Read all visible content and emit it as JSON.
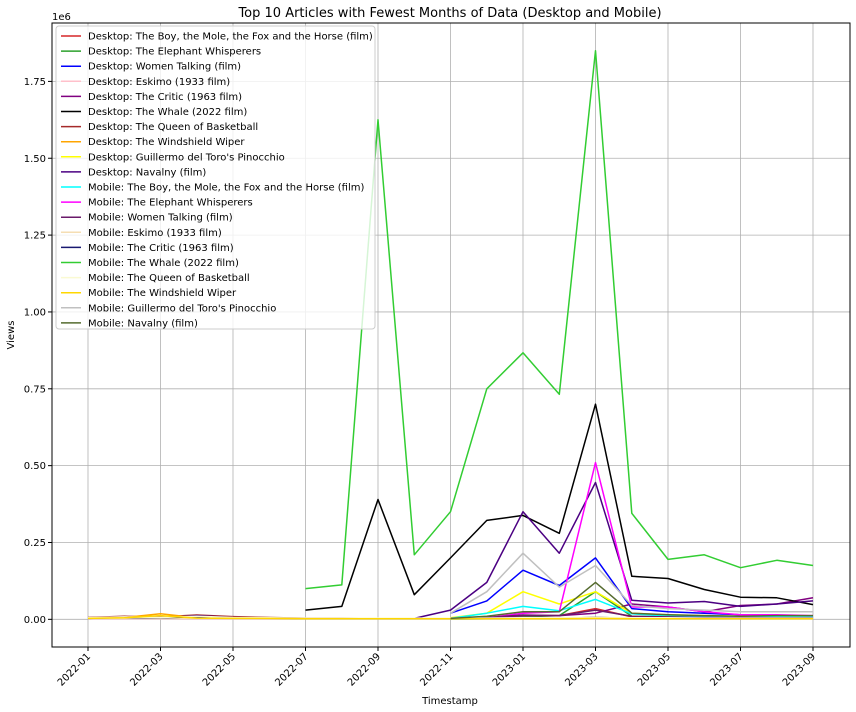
{
  "chart_data": {
    "type": "line",
    "title": "Top 10 Articles with Fewest Months of Data (Desktop and Mobile)",
    "xlabel": "Timestamp",
    "ylabel": "Views",
    "y_scale_label": "1e6",
    "ylim": [
      -0.09,
      1.94
    ],
    "y_ticks": [
      0,
      0.25,
      0.5,
      0.75,
      1.0,
      1.25,
      1.5,
      1.75
    ],
    "y_tick_labels": [
      "0.00",
      "0.25",
      "0.50",
      "0.75",
      "1.00",
      "1.25",
      "1.50",
      "1.75"
    ],
    "x": [
      "2022-01",
      "2022-02",
      "2022-03",
      "2022-04",
      "2022-05",
      "2022-06",
      "2022-07",
      "2022-08",
      "2022-09",
      "2022-10",
      "2022-11",
      "2022-12",
      "2023-01",
      "2023-02",
      "2023-03",
      "2023-04",
      "2023-05",
      "2023-06",
      "2023-07",
      "2023-08",
      "2023-09"
    ],
    "x_tick_labels": [
      "2022-01",
      "2022-03",
      "2022-05",
      "2022-07",
      "2022-09",
      "2022-11",
      "2023-01",
      "2023-03",
      "2023-05",
      "2023-07",
      "2023-09"
    ],
    "grid": true,
    "legend_position": "top-left",
    "series": [
      {
        "name": "Desktop: The Boy, the Mole, the Fox and the Horse (film)",
        "color": "#d62728",
        "values": [
          null,
          null,
          null,
          null,
          null,
          null,
          null,
          null,
          null,
          null,
          0.002,
          0.003,
          0.012,
          0.012,
          0.035,
          0.008,
          0.006,
          0.005,
          0.004,
          0.004,
          0.004
        ]
      },
      {
        "name": "Desktop: The Elephant Whisperers",
        "color": "#2ca02c",
        "values": [
          null,
          null,
          null,
          null,
          null,
          null,
          null,
          null,
          null,
          null,
          0.001,
          0.002,
          0.008,
          0.012,
          0.09,
          0.01,
          0.006,
          0.005,
          0.004,
          0.004,
          0.004
        ]
      },
      {
        "name": "Desktop: Women Talking (film)",
        "color": "#0000ff",
        "values": [
          null,
          null,
          null,
          null,
          null,
          null,
          null,
          null,
          null,
          null,
          0.02,
          0.06,
          0.16,
          0.11,
          0.2,
          0.035,
          0.025,
          0.02,
          0.015,
          0.012,
          0.01
        ]
      },
      {
        "name": "Desktop: Eskimo (1933 film)",
        "color": "#ffc0cb",
        "values": [
          0.002,
          0.002,
          0.002,
          0.002,
          0.002,
          0.002,
          0.002,
          0.002,
          0.002,
          0.002,
          0.002,
          0.002,
          0.002,
          0.002,
          0.002,
          0.002,
          0.002,
          0.002,
          0.002,
          0.002,
          0.002
        ]
      },
      {
        "name": "Desktop: The Critic (1963 film)",
        "color": "#800080",
        "values": [
          0.005,
          0.008,
          0.006,
          0.012,
          0.006,
          0.004,
          0.003,
          0.003,
          0.003,
          0.003,
          0.003,
          0.004,
          0.012,
          0.012,
          0.02,
          0.05,
          0.04,
          0.025,
          0.045,
          0.05,
          0.07
        ]
      },
      {
        "name": "Desktop: The Whale (2022 film)",
        "color": "#000000",
        "values": [
          null,
          null,
          null,
          null,
          null,
          null,
          0.03,
          0.042,
          0.39,
          0.08,
          0.2,
          0.322,
          0.338,
          0.28,
          0.7,
          0.14,
          0.133,
          0.097,
          0.072,
          0.07,
          0.048
        ]
      },
      {
        "name": "Desktop: The Queen of Basketball",
        "color": "#a52a2a",
        "values": [
          0.006,
          0.01,
          0.008,
          0.014,
          0.009,
          0.006,
          0.004,
          0.004,
          0.003,
          0.003,
          0.003,
          0.003,
          0.004,
          0.004,
          0.006,
          0.004,
          0.003,
          0.003,
          0.003,
          0.003,
          0.003
        ]
      },
      {
        "name": "Desktop: The Windshield Wiper",
        "color": "#ffa500",
        "values": [
          0.004,
          0.006,
          0.018,
          0.005,
          0.004,
          0.003,
          0.002,
          0.002,
          0.002,
          0.002,
          0.002,
          0.002,
          0.002,
          0.002,
          0.004,
          0.002,
          0.002,
          0.002,
          0.002,
          0.002,
          0.002
        ]
      },
      {
        "name": "Desktop: Guillermo del Toro's Pinocchio",
        "color": "#ffff00",
        "values": [
          null,
          null,
          null,
          null,
          null,
          null,
          null,
          null,
          null,
          null,
          0.005,
          0.02,
          0.09,
          0.05,
          0.09,
          0.02,
          0.015,
          0.012,
          0.01,
          0.01,
          0.008
        ]
      },
      {
        "name": "Desktop: Navalny (film)",
        "color": "#4b0082",
        "values": [
          0.003,
          0.006,
          0.004,
          0.012,
          0.006,
          0.004,
          0.003,
          0.003,
          0.003,
          0.003,
          0.03,
          0.12,
          0.35,
          0.215,
          0.445,
          0.062,
          0.053,
          0.058,
          0.042,
          0.05,
          0.06
        ]
      },
      {
        "name": "Mobile: The Boy, the Mole, the Fox and the Horse (film)",
        "color": "#00ffff",
        "values": [
          null,
          null,
          null,
          null,
          null,
          null,
          null,
          null,
          null,
          null,
          0.003,
          0.02,
          0.042,
          0.028,
          0.065,
          0.018,
          0.01,
          0.01,
          0.008,
          0.008,
          0.007
        ]
      },
      {
        "name": "Mobile: The Elephant Whisperers",
        "color": "#ff00ff",
        "values": [
          null,
          null,
          null,
          null,
          null,
          null,
          null,
          null,
          null,
          null,
          0.002,
          0.005,
          0.02,
          0.025,
          0.51,
          0.04,
          0.04,
          0.025,
          0.015,
          0.015,
          0.012
        ]
      },
      {
        "name": "Mobile: Women Talking (film)",
        "color": "#6a1a6a",
        "values": [
          null,
          null,
          null,
          null,
          null,
          null,
          null,
          null,
          null,
          null,
          0.002,
          0.006,
          0.014,
          0.012,
          0.03,
          0.01,
          0.008,
          0.006,
          0.005,
          0.005,
          0.005
        ]
      },
      {
        "name": "Mobile: Eskimo (1933 film)",
        "color": "#f5deb3",
        "values": [
          0.003,
          0.003,
          0.003,
          0.003,
          0.003,
          0.003,
          0.003,
          0.003,
          0.003,
          0.003,
          0.003,
          0.003,
          0.003,
          0.003,
          0.003,
          0.003,
          0.003,
          0.003,
          0.003,
          0.003,
          0.003
        ]
      },
      {
        "name": "Mobile: The Critic (1963 film)",
        "color": "#191970",
        "values": [
          0.004,
          0.006,
          0.005,
          0.008,
          0.005,
          0.004,
          0.003,
          0.003,
          0.003,
          0.003,
          0.003,
          0.003,
          0.004,
          0.004,
          0.006,
          0.004,
          0.004,
          0.004,
          0.004,
          0.004,
          0.005
        ]
      },
      {
        "name": "Mobile: The Whale (2022 film)",
        "color": "#32cd32",
        "values": [
          null,
          null,
          null,
          null,
          null,
          null,
          0.1,
          0.112,
          1.625,
          0.21,
          0.35,
          0.75,
          0.867,
          0.732,
          1.85,
          0.345,
          0.195,
          0.21,
          0.168,
          0.192,
          0.175
        ]
      },
      {
        "name": "Mobile: The Queen of Basketball",
        "color": "#fafad2",
        "values": [
          0.005,
          0.008,
          0.006,
          0.01,
          0.006,
          0.005,
          0.004,
          0.004,
          0.004,
          0.004,
          0.004,
          0.004,
          0.005,
          0.005,
          0.006,
          0.005,
          0.005,
          0.004,
          0.004,
          0.004,
          0.004
        ]
      },
      {
        "name": "Mobile: The Windshield Wiper",
        "color": "#ffd700",
        "values": [
          0.003,
          0.005,
          0.012,
          0.004,
          0.003,
          0.003,
          0.002,
          0.002,
          0.002,
          0.002,
          0.002,
          0.002,
          0.002,
          0.002,
          0.003,
          0.002,
          0.002,
          0.002,
          0.002,
          0.002,
          0.002
        ]
      },
      {
        "name": "Mobile: Guillermo del Toro's Pinocchio",
        "color": "#c0c0c0",
        "values": [
          null,
          null,
          null,
          null,
          null,
          null,
          null,
          null,
          null,
          null,
          0.02,
          0.09,
          0.215,
          0.105,
          0.175,
          0.045,
          0.035,
          0.03,
          0.025,
          0.025,
          0.025
        ]
      },
      {
        "name": "Mobile: Navalny (film)",
        "color": "#556b2f",
        "values": [
          null,
          null,
          null,
          null,
          null,
          null,
          null,
          null,
          null,
          null,
          0.003,
          0.01,
          0.025,
          0.025,
          0.12,
          0.02,
          0.015,
          0.012,
          0.01,
          0.012,
          0.012
        ]
      }
    ]
  }
}
